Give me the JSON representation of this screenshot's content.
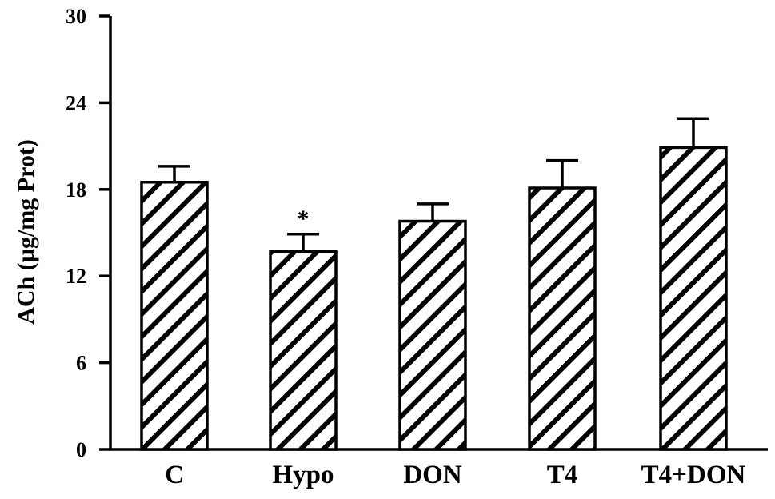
{
  "chart_data": {
    "type": "bar",
    "title": "",
    "xlabel": "",
    "ylabel": "ACh (µg/mg Prot)",
    "ylim": [
      0,
      30
    ],
    "yticks": [
      0,
      6,
      12,
      18,
      24,
      30
    ],
    "yticks_labels": [
      "0",
      "6",
      "12",
      "18",
      "24",
      "30"
    ],
    "categories": [
      "C",
      "Hypo",
      "DON",
      "T4",
      "T4+DON"
    ],
    "values": [
      18.5,
      13.7,
      15.8,
      18.1,
      20.9
    ],
    "errors": [
      1.1,
      1.2,
      1.2,
      1.9,
      2.0
    ],
    "annotations": [
      "",
      "*",
      "",
      "",
      ""
    ],
    "fill_pattern": "diagonal-hatch",
    "bar_color": "#000000",
    "background": "#ffffff",
    "grid": false,
    "legend": "none"
  }
}
